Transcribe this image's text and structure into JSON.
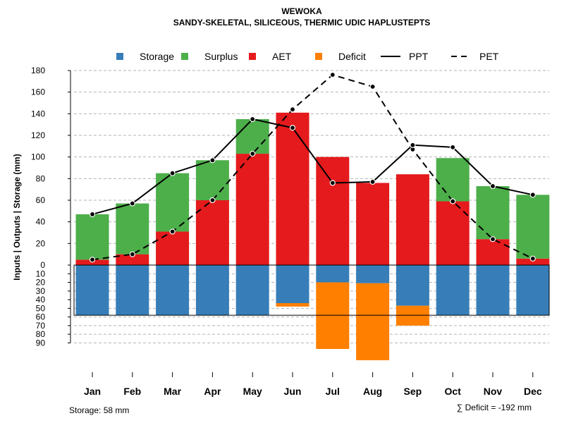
{
  "chart_data": {
    "type": "bar",
    "title": "WEWOKA",
    "subtitle": "SANDY-SKELETAL, SILICEOUS, THERMIC UDIC HAPLUSTEPTS",
    "ylabel": "Inputs | Outputs | Storage    (mm)",
    "categories": [
      "Jan",
      "Feb",
      "Mar",
      "Apr",
      "May",
      "Jun",
      "Jul",
      "Aug",
      "Sep",
      "Oct",
      "Nov",
      "Dec"
    ],
    "ylim_upper": [
      0,
      180
    ],
    "ylim_lower": [
      0,
      90
    ],
    "upper_ticks": [
      "0",
      "20",
      "40",
      "60",
      "80",
      "100",
      "120",
      "140",
      "160",
      "180"
    ],
    "lower_ticks": [
      "10",
      "20",
      "30",
      "40",
      "50",
      "60",
      "70",
      "80",
      "90"
    ],
    "series": [
      {
        "name": "Storage",
        "values": [
          58,
          58,
          58,
          58,
          58,
          44,
          20,
          21,
          47,
          58,
          58,
          58
        ]
      },
      {
        "name": "Surplus",
        "values": [
          42,
          47,
          54,
          37,
          32,
          0,
          0,
          0,
          0,
          40,
          49,
          59
        ]
      },
      {
        "name": "AET",
        "values": [
          5,
          10,
          31,
          60,
          103,
          141,
          100,
          76,
          84,
          59,
          24,
          6
        ]
      },
      {
        "name": "Deficit",
        "values": [
          0,
          0,
          0,
          0,
          0,
          4,
          77,
          89,
          23,
          0,
          0,
          0
        ]
      },
      {
        "name": "PPT",
        "values": [
          47,
          57,
          85,
          97,
          135,
          127,
          76,
          77,
          111,
          109,
          73,
          65
        ]
      },
      {
        "name": "PET",
        "values": [
          5,
          10,
          31,
          60,
          103,
          144,
          176,
          165,
          107,
          59,
          24,
          6
        ]
      }
    ],
    "legend": {
      "position": "top",
      "items": [
        {
          "label": "Storage",
          "kind": "box"
        },
        {
          "label": "Surplus",
          "kind": "box"
        },
        {
          "label": "AET",
          "kind": "box"
        },
        {
          "label": "Deficit",
          "kind": "box"
        },
        {
          "label": "PPT",
          "kind": "solid"
        },
        {
          "label": "PET",
          "kind": "dashed"
        }
      ]
    },
    "colors": {
      "Storage": "#377EB8",
      "Surplus": "#4DAF4A",
      "AET": "#E41A1C",
      "Deficit": "#FF7F00",
      "PPT": "#000000",
      "PET": "#000000"
    },
    "storage_note": "Storage: 58 mm",
    "deficit_note": "∑ Deficit = -192 mm"
  }
}
